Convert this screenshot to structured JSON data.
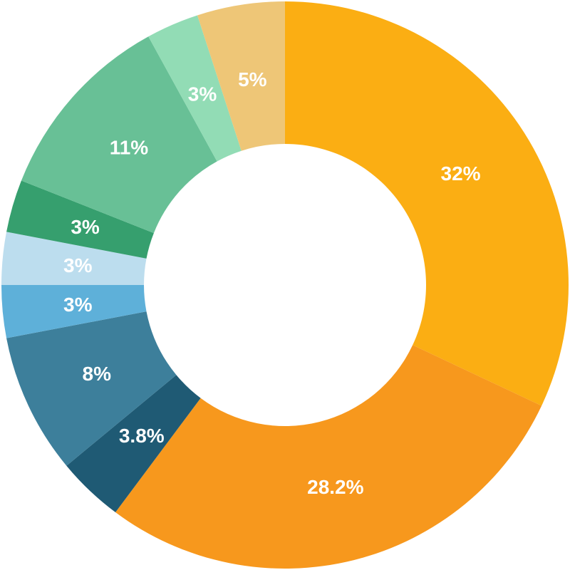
{
  "chart_data": {
    "type": "pie",
    "variant": "donut",
    "start": "12 o'clock",
    "direction": "clockwise",
    "slices": [
      {
        "label": "32%",
        "value": 32,
        "color": "#FBAE13"
      },
      {
        "label": "28.2%",
        "value": 28.2,
        "color": "#F7981D"
      },
      {
        "label": "3.8%",
        "value": 3.8,
        "color": "#1F5A74"
      },
      {
        "label": "8%",
        "value": 8,
        "color": "#3D7F9B"
      },
      {
        "label": "3%",
        "value": 3,
        "color": "#5EB0D9"
      },
      {
        "label": "3%",
        "value": 3,
        "color": "#BCDDEE"
      },
      {
        "label": "3%",
        "value": 3,
        "color": "#369F6E"
      },
      {
        "label": "11%",
        "value": 11,
        "color": "#68C096"
      },
      {
        "label": "3%",
        "value": 3,
        "color": "#92DCB5"
      },
      {
        "label": "5%",
        "value": 5,
        "color": "#EEC677"
      }
    ]
  }
}
